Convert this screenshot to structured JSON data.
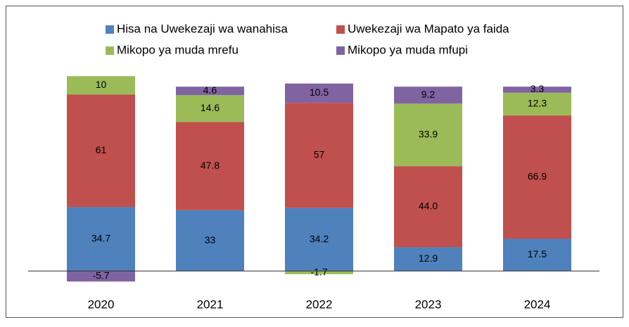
{
  "chart_data": {
    "type": "stacked_bar",
    "categories": [
      "2020",
      "2021",
      "2022",
      "2023",
      "2024"
    ],
    "series": [
      {
        "name": "Hisa na Uwekezaji wa wanahisa",
        "color": "#4f81bd",
        "values": [
          34.7,
          33,
          34.2,
          12.9,
          17.5
        ]
      },
      {
        "name": "Uwekezaji wa Mapato ya faida",
        "color": "#c0504d",
        "values": [
          61,
          47.8,
          57,
          44.0,
          66.9
        ],
        "value_labels": [
          "61",
          "47.8",
          "57",
          "44.0",
          "66.9"
        ]
      },
      {
        "name": "Mikopo ya muda mrefu",
        "color": "#9bbb59",
        "values": [
          10,
          14.6,
          -1.7,
          33.9,
          12.3
        ]
      },
      {
        "name": "Mikopo ya muda mfupi",
        "color": "#8064a2",
        "values": [
          -5.7,
          4.6,
          10.5,
          9.2,
          3.3
        ]
      }
    ],
    "ylim": [
      -9,
      110
    ]
  }
}
